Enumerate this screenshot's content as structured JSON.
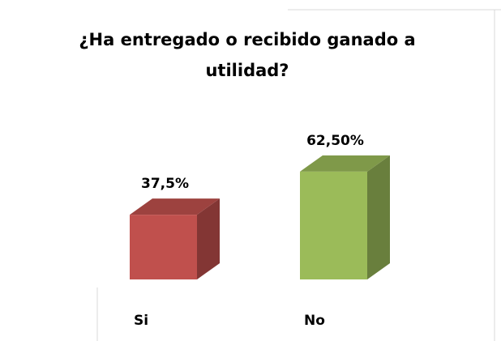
{
  "chart_data": {
    "type": "bar3d",
    "title": "¿Ha entregado o recibido ganado a utilidad?",
    "categories": [
      "Si",
      "No"
    ],
    "values": [
      37.5,
      62.5
    ],
    "value_labels": [
      "37,5%",
      "62,50%"
    ],
    "colors": [
      "#c0504d",
      "#9bbb59"
    ]
  }
}
